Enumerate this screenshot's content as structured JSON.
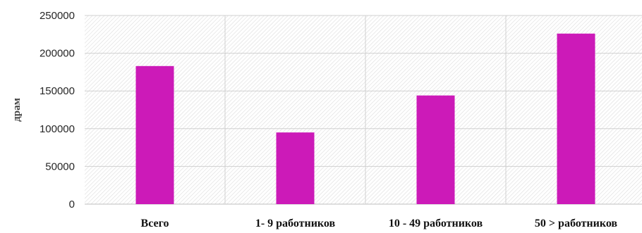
{
  "chart_data": {
    "type": "bar",
    "categories": [
      "Всего",
      "1- 9 работников",
      "10 - 49 работников",
      "50 > работников"
    ],
    "values": [
      183000,
      95000,
      144000,
      226000
    ],
    "ylabel": "драм",
    "xlabel": "",
    "ylim": [
      0,
      250000
    ],
    "yticks": [
      0,
      50000,
      100000,
      150000,
      200000,
      250000
    ],
    "ytick_labels": [
      "0",
      "50000",
      "100000",
      "150000",
      "200000",
      "250000"
    ],
    "grid": true,
    "plot_background": "hatched light gray",
    "bar_color": "#cc1ab8",
    "legend": "none"
  }
}
